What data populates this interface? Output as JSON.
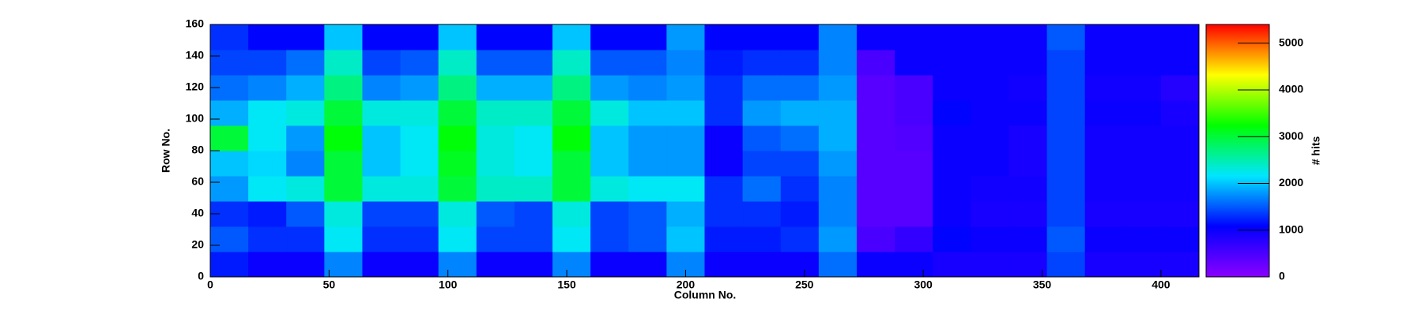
{
  "chart_data": {
    "type": "heatmap",
    "x_label": "Column No.",
    "y_label": "Row No.",
    "z_label": "# hits",
    "xlim": [
      0,
      416
    ],
    "ylim": [
      0,
      160
    ],
    "zlim": [
      0,
      5400
    ],
    "xticks": [
      0,
      50,
      100,
      150,
      200,
      250,
      300,
      350,
      400
    ],
    "yticks": [
      0,
      20,
      40,
      60,
      80,
      100,
      120,
      140,
      160
    ],
    "zticks": [
      0,
      1000,
      2000,
      3000,
      4000,
      5000
    ],
    "colorscale": [
      "#8a00ff",
      "#0000ff",
      "#00e6ff",
      "#00ff00",
      "#ffff00",
      "#ff0000"
    ],
    "xbins": [
      0,
      16,
      32,
      48,
      64,
      80,
      96,
      112,
      128,
      144,
      160,
      176,
      192,
      208,
      224,
      240,
      256,
      272,
      288,
      304,
      320,
      336,
      352,
      368,
      384,
      400,
      416
    ],
    "ybins": [
      0,
      16,
      32,
      48,
      64,
      80,
      96,
      112,
      128,
      144,
      160
    ],
    "z": [
      [
        1200,
        1000,
        1000,
        1700,
        1000,
        1000,
        1700,
        1000,
        1000,
        1700,
        1000,
        1000,
        1700,
        1000,
        1000,
        1000,
        1600,
        1000,
        1000,
        900,
        900,
        900,
        1400,
        900,
        900,
        900
      ],
      [
        1500,
        1300,
        1300,
        2200,
        1300,
        1300,
        2200,
        1400,
        1400,
        2200,
        1400,
        1500,
        2000,
        1200,
        1200,
        1300,
        1800,
        500,
        700,
        1100,
        1000,
        1000,
        1500,
        1000,
        1000,
        1000
      ],
      [
        1300,
        1200,
        1500,
        2300,
        1400,
        1400,
        2300,
        1500,
        1400,
        2300,
        1400,
        1500,
        1900,
        1300,
        1300,
        1200,
        1700,
        400,
        400,
        1000,
        900,
        900,
        1400,
        900,
        900,
        900
      ],
      [
        1800,
        2200,
        2300,
        3000,
        2300,
        2300,
        3000,
        2400,
        2400,
        3000,
        2300,
        2200,
        2200,
        1300,
        1600,
        1300,
        1700,
        400,
        400,
        1000,
        950,
        950,
        1400,
        950,
        950,
        950
      ],
      [
        2000,
        2100,
        1700,
        3000,
        2000,
        2200,
        3100,
        2300,
        2200,
        3000,
        2000,
        1800,
        1800,
        1000,
        1400,
        1400,
        1800,
        400,
        400,
        1000,
        1000,
        900,
        1400,
        950,
        950,
        950
      ],
      [
        3000,
        2200,
        1800,
        3200,
        2000,
        2200,
        3200,
        2300,
        2200,
        3200,
        2000,
        1800,
        1800,
        1000,
        1500,
        1600,
        1900,
        400,
        450,
        1000,
        1000,
        900,
        1400,
        950,
        950,
        950
      ],
      [
        1900,
        2200,
        2300,
        3000,
        2300,
        2300,
        3000,
        2400,
        2400,
        3000,
        2300,
        2000,
        2000,
        1300,
        1800,
        1900,
        1900,
        400,
        500,
        1100,
        1000,
        1000,
        1400,
        1000,
        1000,
        900
      ],
      [
        1600,
        1700,
        1900,
        2700,
        1700,
        1800,
        2700,
        1900,
        1900,
        2700,
        1800,
        1700,
        1800,
        1300,
        1600,
        1600,
        1800,
        400,
        500,
        1000,
        1000,
        950,
        1400,
        950,
        950,
        800
      ],
      [
        1400,
        1400,
        1600,
        2400,
        1400,
        1500,
        2400,
        1500,
        1500,
        2400,
        1500,
        1500,
        1700,
        1200,
        1300,
        1300,
        1700,
        500,
        1000,
        1000,
        1000,
        1000,
        1400,
        1000,
        1000,
        1000
      ],
      [
        1300,
        1100,
        1100,
        2000,
        1100,
        1100,
        2000,
        1100,
        1100,
        2000,
        1100,
        1100,
        1800,
        1100,
        1100,
        1100,
        1700,
        1000,
        1000,
        1000,
        1000,
        1000,
        1500,
        1000,
        1000,
        1000
      ]
    ]
  }
}
